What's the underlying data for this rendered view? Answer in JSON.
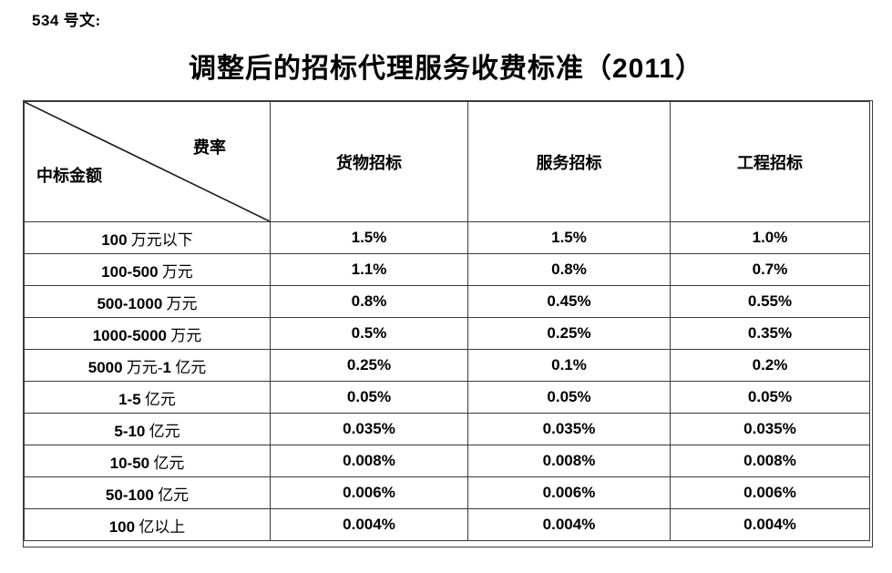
{
  "doc_label": "534 号文:",
  "title": "调整后的招标代理服务收费标准（2011）",
  "table": {
    "corner": {
      "top_right_label": "费率",
      "bottom_left_label": "中标金额"
    },
    "columns": [
      "货物招标",
      "服务招标",
      "工程招标"
    ],
    "rows": [
      {
        "label": "100 万元以下",
        "values": [
          "1.5%",
          "1.5%",
          "1.0%"
        ]
      },
      {
        "label": "100-500 万元",
        "values": [
          "1.1%",
          "0.8%",
          "0.7%"
        ]
      },
      {
        "label": "500-1000 万元",
        "values": [
          "0.8%",
          "0.45%",
          "0.55%"
        ]
      },
      {
        "label": "1000-5000 万元",
        "values": [
          "0.5%",
          "0.25%",
          "0.35%"
        ]
      },
      {
        "label": "5000 万元-1 亿元",
        "values": [
          "0.25%",
          "0.1%",
          "0.2%"
        ]
      },
      {
        "label": "1-5 亿元",
        "values": [
          "0.05%",
          "0.05%",
          "0.05%"
        ]
      },
      {
        "label": "5-10 亿元",
        "values": [
          "0.035%",
          "0.035%",
          "0.035%"
        ]
      },
      {
        "label": "10-50 亿元",
        "values": [
          "0.008%",
          "0.008%",
          "0.008%"
        ]
      },
      {
        "label": "50-100 亿元",
        "values": [
          "0.006%",
          "0.006%",
          "0.006%"
        ]
      },
      {
        "label": "100 亿以上",
        "values": [
          "0.004%",
          "0.004%",
          "0.004%"
        ]
      }
    ]
  },
  "colors": {
    "text": "#000000",
    "border": "#3a3a3a",
    "background": "#ffffff"
  }
}
